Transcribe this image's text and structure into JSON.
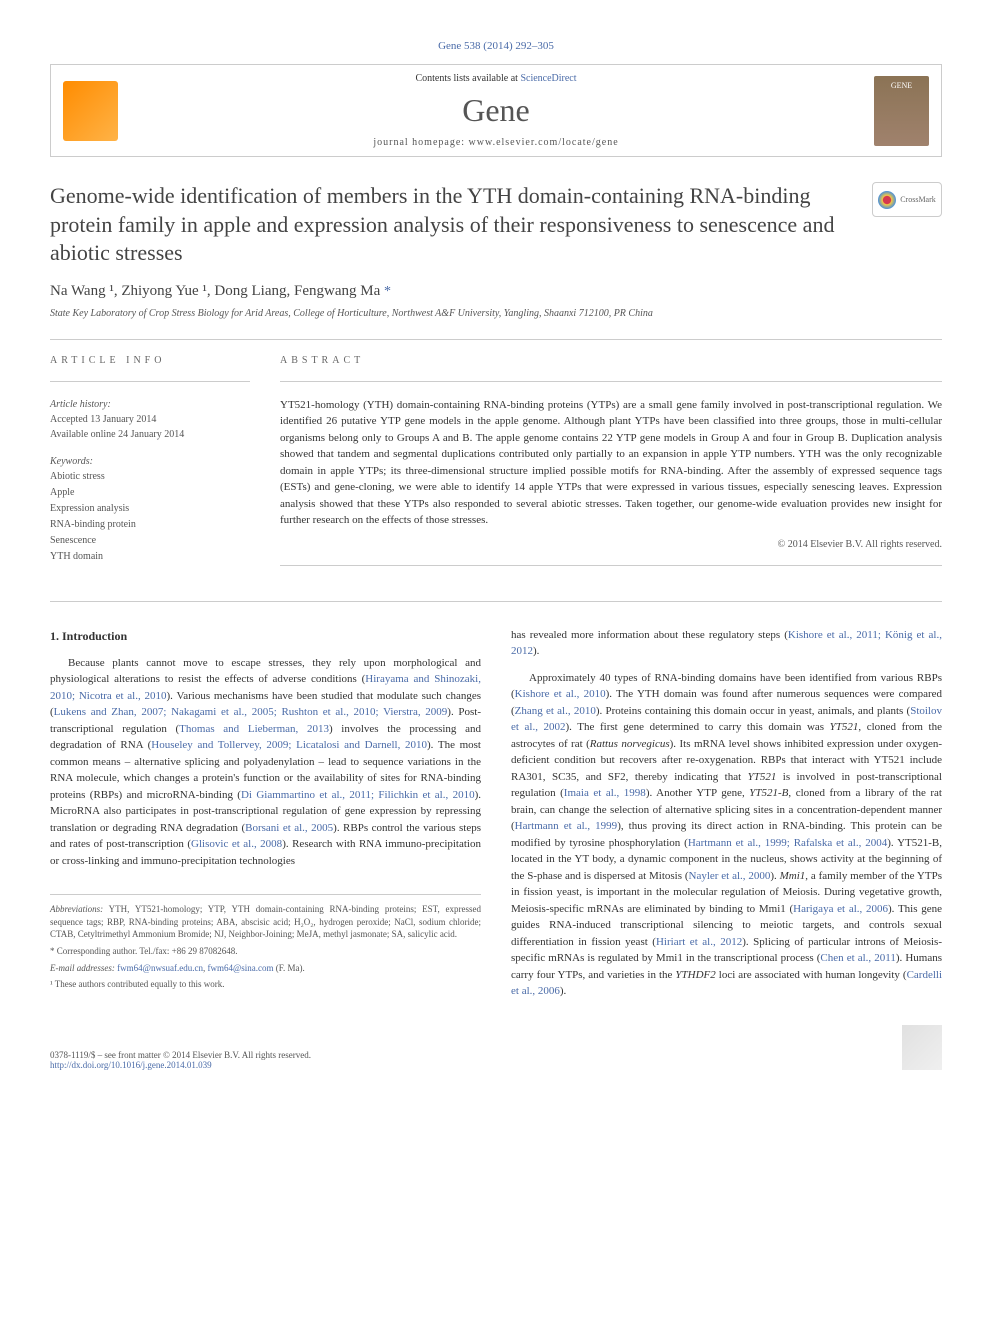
{
  "header": {
    "citation": "Gene 538 (2014) 292–305",
    "contents_line": "Contents lists available at ",
    "sd_text": "ScienceDirect",
    "journal_name": "Gene",
    "homepage_label": "journal homepage: ",
    "homepage_url": "www.elsevier.com/locate/gene",
    "gene_cover_text": "GENE"
  },
  "crossmark": "CrossMark",
  "title": "Genome-wide identification of members in the YTH domain-containing RNA-binding protein family in apple and expression analysis of their responsiveness to senescence and abiotic stresses",
  "authors": {
    "names": "Na Wang ¹, Zhiyong Yue ¹, Dong Liang, Fengwang Ma ",
    "corresponding_mark": "*"
  },
  "affiliation": "State Key Laboratory of Crop Stress Biology for Arid Areas, College of Horticulture, Northwest A&F University, Yangling, Shaanxi 712100, PR China",
  "article_info": {
    "heading": "ARTICLE INFO",
    "history_label": "Article history:",
    "accepted": "Accepted 13 January 2014",
    "available": "Available online 24 January 2014",
    "keywords_label": "Keywords:",
    "keywords": [
      "Abiotic stress",
      "Apple",
      "Expression analysis",
      "RNA-binding protein",
      "Senescence",
      "YTH domain"
    ]
  },
  "abstract": {
    "heading": "ABSTRACT",
    "text": "YT521-homology (YTH) domain-containing RNA-binding proteins (YTPs) are a small gene family involved in post-transcriptional regulation. We identified 26 putative YTP gene models in the apple genome. Although plant YTPs have been classified into three groups, those in multi-cellular organisms belong only to Groups A and B. The apple genome contains 22 YTP gene models in Group A and four in Group B. Duplication analysis showed that tandem and segmental duplications contributed only partially to an expansion in apple YTP numbers. YTH was the only recognizable domain in apple YTPs; its three-dimensional structure implied possible motifs for RNA-binding. After the assembly of expressed sequence tags (ESTs) and gene-cloning, we were able to identify 14 apple YTPs that were expressed in various tissues, especially senescing leaves. Expression analysis showed that these YTPs also responded to several abiotic stresses. Taken together, our genome-wide evaluation provides new insight for further research on the effects of those stresses.",
    "copyright": "© 2014 Elsevier B.V. All rights reserved."
  },
  "introduction": {
    "heading": "1. Introduction",
    "para1_a": "Because plants cannot move to escape stresses, they rely upon morphological and physiological alterations to resist the effects of adverse conditions (",
    "para1_ref1": "Hirayama and Shinozaki, 2010; Nicotra et al., 2010",
    "para1_b": "). Various mechanisms have been studied that modulate such changes (",
    "para1_ref2": "Lukens and Zhan, 2007; Nakagami et al., 2005; Rushton et al., 2010; Vierstra, 2009",
    "para1_c": "). Post-transcriptional regulation (",
    "para1_ref3": "Thomas and Lieberman, 2013",
    "para1_d": ") involves the processing and degradation of RNA (",
    "para1_ref4": "Houseley and Tollervey, 2009; Licatalosi and Darnell, 2010",
    "para1_e": "). The most common means – alternative splicing and polyadenylation – lead to sequence variations in the RNA molecule, which changes a protein's function or the availability of sites for RNA-binding proteins (RBPs) and microRNA-binding (",
    "para1_ref5": "Di Giammartino et al., 2011; Filichkin et al., 2010",
    "para1_f": "). MicroRNA also participates in post-transcriptional regulation of gene expression by repressing translation or degrading RNA degradation (",
    "para1_ref6": "Borsani et al., 2005",
    "para1_g": "). RBPs control the various steps and rates of post-transcription (",
    "para1_ref7": "Glisovic et al., 2008",
    "para1_h": "). Research with RNA immuno-precipitation or cross-linking and immuno-precipitation technologies",
    "para2_a": "has revealed more information about these regulatory steps (",
    "para2_ref1": "Kishore et al., 2011; König et al., 2012",
    "para2_b": ").",
    "para3_a": "Approximately 40 types of RNA-binding domains have been identified from various RBPs (",
    "para3_ref1": "Kishore et al., 2010",
    "para3_b": "). The YTH domain was found after numerous sequences were compared (",
    "para3_ref2": "Zhang et al., 2010",
    "para3_c": "). Proteins containing this domain occur in yeast, animals, and plants (",
    "para3_ref3": "Stoilov et al., 2002",
    "para3_d": "). The first gene determined to carry this domain was ",
    "para3_gene1": "YT521",
    "para3_e": ", cloned from the astrocytes of rat (",
    "para3_species1": "Rattus norvegicus",
    "para3_f": "). Its mRNA level shows inhibited expression under oxygen-deficient condition but recovers after re-oxygenation. RBPs that interact with YT521 include RA301, SC35, and SF2, thereby indicating that ",
    "para3_gene2": "YT521",
    "para3_g": " is involved in post-transcriptional regulation (",
    "para3_ref4": "Imaia et al., 1998",
    "para3_h": "). Another YTP gene, ",
    "para3_gene3": "YT521-B",
    "para3_i": ", cloned from a library of the rat brain, can change the selection of alternative splicing sites in a concentration-dependent manner (",
    "para3_ref5": "Hartmann et al., 1999",
    "para3_j": "), thus proving its direct action in RNA-binding. This protein can be modified by tyrosine phosphorylation (",
    "para3_ref6": "Hartmann et al., 1999; Rafalska et al., 2004",
    "para3_k": "). YT521-B, located in the YT body, a dynamic component in the nucleus, shows activity at the beginning of the S-phase and is dispersed at Mitosis (",
    "para3_ref7": "Nayler et al., 2000",
    "para3_l": "). ",
    "para3_gene4": "Mmi1",
    "para3_m": ", a family member of the YTPs in fission yeast, is important in the molecular regulation of Meiosis. During vegetative growth, Meiosis-specific mRNAs are eliminated by binding to Mmi1 (",
    "para3_ref8": "Harigaya et al., 2006",
    "para3_n": "). This gene guides RNA-induced transcriptional silencing to meiotic targets, and controls sexual differentiation in fission yeast (",
    "para3_ref9": "Hiriart et al., 2012",
    "para3_o": "). Splicing of particular introns of Meiosis-specific mRNAs is regulated by Mmi1 in the transcriptional process (",
    "para3_ref10": "Chen et al., 2011",
    "para3_p": "). Humans carry four YTPs, and varieties in the ",
    "para3_gene5": "YTHDF2",
    "para3_q": " loci are associated with human longevity (",
    "para3_ref11": "Cardelli et al., 2006",
    "para3_r": ")."
  },
  "footnotes": {
    "abbrev_label": "Abbreviations:",
    "abbrev_text": " YTH, YT521-homology; YTP, YTH domain-containing RNA-binding proteins; EST, expressed sequence tags; RBP, RNA-binding proteins; ABA, abscisic acid; H₂O₂, hydrogen peroxide; NaCl, sodium chloride; CTAB, Cetyltrimethyl Ammonium Bromide; NJ, Neighbor-Joining; MeJA, methyl jasmonate; SA, salicylic acid.",
    "corresponding": "* Corresponding author. Tel./fax: +86 29 87082648.",
    "email_label": "E-mail addresses: ",
    "email1": "fwm64@nwsuaf.edu.cn",
    "email_sep": ", ",
    "email2": "fwm64@sina.com",
    "email_suffix": " (F. Ma).",
    "contrib": "¹ These authors contributed equally to this work."
  },
  "footer": {
    "issn": "0378-1119/$ – see front matter © 2014 Elsevier B.V. All rights reserved.",
    "doi": "http://dx.doi.org/10.1016/j.gene.2014.01.039"
  },
  "colors": {
    "link_blue": "#4a6ba8",
    "text_dark": "#333333",
    "text_gray": "#555555",
    "border_gray": "#cccccc",
    "elsevier_orange": "#ff8c00"
  }
}
